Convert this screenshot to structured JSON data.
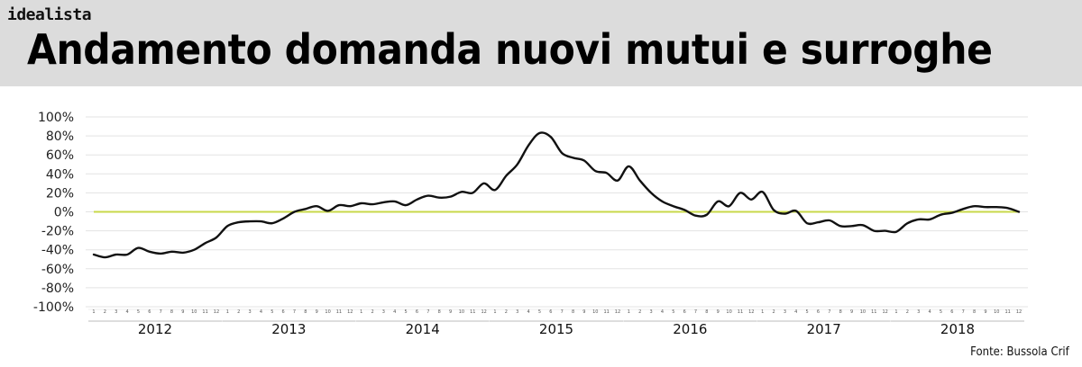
{
  "brand": "idealista",
  "title": "Andamento domanda nuovi mutui e surroghe",
  "source": "Fonte: Bussola Crif",
  "colors": {
    "header_bg": "#dcdcdc",
    "line": "#111111",
    "zero_line": "#c8d84a",
    "grid": "#e3e3e3"
  },
  "chart_data": {
    "type": "line",
    "title": "Andamento domanda nuovi mutui e surroghe",
    "ylim": [
      -100,
      100
    ],
    "y_ticks": [
      "100%",
      "80%",
      "60%",
      "40%",
      "20%",
      "0%",
      "-20%",
      "-40%",
      "-60%",
      "-80%",
      "-100%"
    ],
    "y_tick_values": [
      100,
      80,
      60,
      40,
      20,
      0,
      -20,
      -40,
      -60,
      -80,
      -100
    ],
    "years": [
      "2012",
      "2013",
      "2014",
      "2015",
      "2016",
      "2017",
      "2018"
    ],
    "month_labels": [
      "1",
      "2",
      "3",
      "4",
      "5",
      "6",
      "7",
      "8",
      "9",
      "10",
      "11",
      "12"
    ],
    "reference_line": 0,
    "grid": true,
    "series": [
      {
        "values": [
          -45,
          -48,
          -45,
          -45,
          -38,
          -42,
          -44,
          -42,
          -43,
          -40,
          -33,
          -27,
          -15,
          -11,
          -10,
          -10,
          -12,
          -7,
          0,
          3,
          6,
          1,
          7,
          6,
          9,
          8,
          10,
          11,
          7,
          13,
          17,
          15,
          16,
          21,
          20,
          30,
          23,
          38,
          50,
          70,
          83,
          79,
          62,
          57,
          54,
          43,
          41,
          33,
          48,
          33,
          20,
          11,
          6,
          2,
          -4,
          -3,
          11,
          6,
          20,
          13,
          21,
          2,
          -2,
          1,
          -12,
          -11,
          -9,
          -15,
          -15,
          -14,
          -20,
          -20,
          -21,
          -12,
          -8,
          -8,
          -3,
          -1,
          3,
          6,
          5,
          5,
          4,
          0
        ]
      }
    ]
  }
}
